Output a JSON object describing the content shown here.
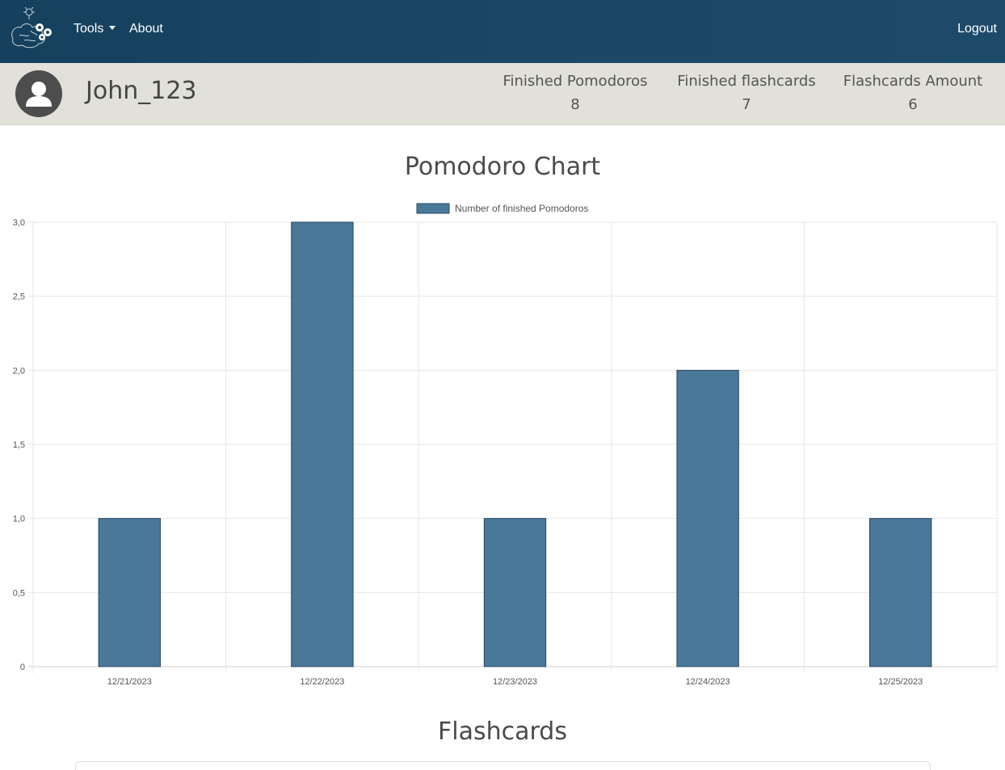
{
  "nav": {
    "tools_label": "Tools",
    "about_label": "About",
    "logout_label": "Logout"
  },
  "profile": {
    "username": "John_123",
    "stats": [
      {
        "label": "Finished Pomodoros",
        "value": "8"
      },
      {
        "label": "Finished flashcards",
        "value": "7"
      },
      {
        "label": "Flashcards Amount",
        "value": "6"
      }
    ]
  },
  "sections": {
    "chart_title": "Pomodoro Chart",
    "flashcards_title": "Flashcards"
  },
  "colors": {
    "navbar": "#1c4766",
    "profile_bar": "#e2e1d9",
    "bar_fill": "#4a7898",
    "bar_border": "#244760"
  },
  "chart_data": {
    "type": "bar",
    "title": "",
    "categories": [
      "12/21/2023",
      "12/22/2023",
      "12/23/2023",
      "12/24/2023",
      "12/25/2023"
    ],
    "series": [
      {
        "name": "Number of finished Pomodoros",
        "values": [
          1,
          3,
          1,
          2,
          1
        ]
      }
    ],
    "ylim": [
      0,
      3
    ],
    "yticks": [
      "0",
      "0,5",
      "1,0",
      "1,5",
      "2,0",
      "2,5",
      "3,0"
    ],
    "grid": true,
    "legend": "top-center"
  }
}
